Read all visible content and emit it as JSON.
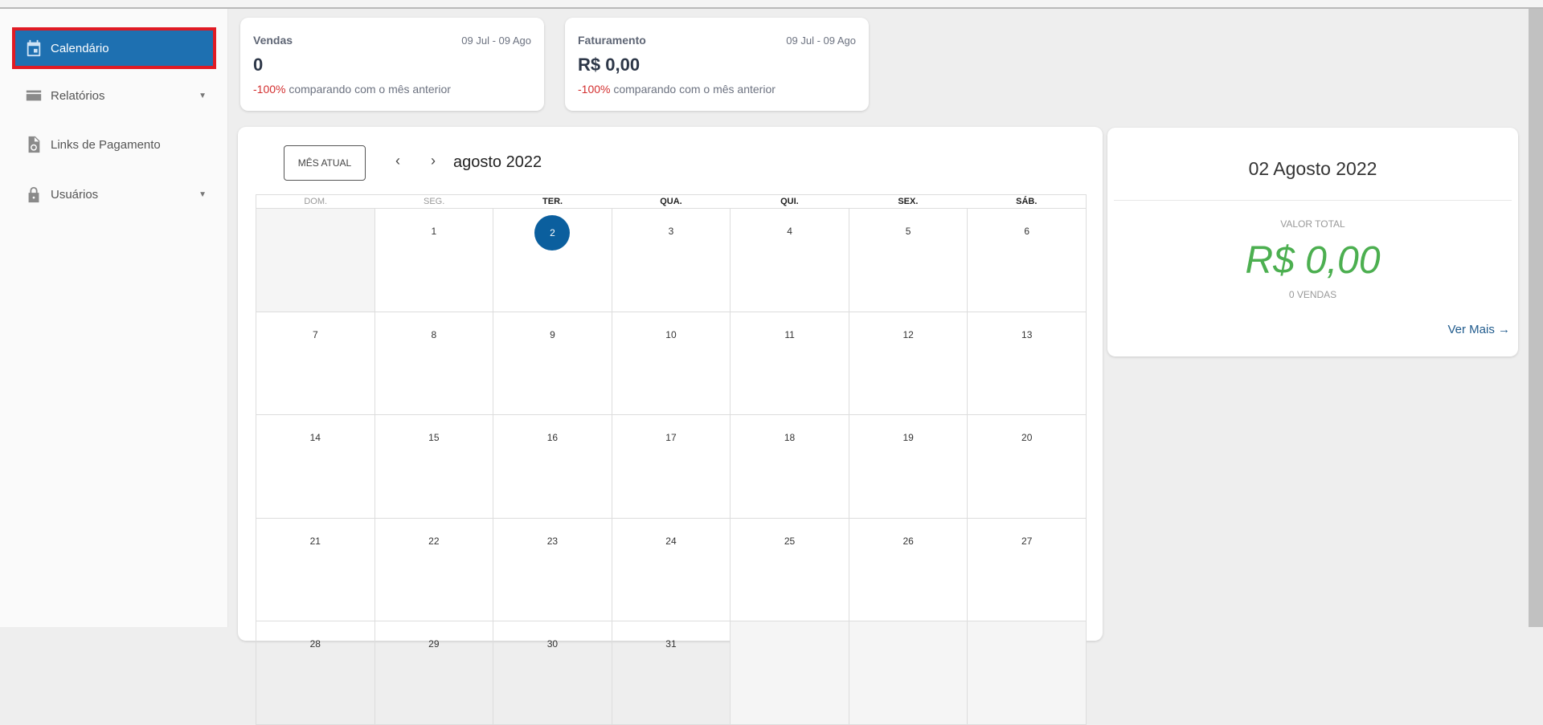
{
  "sidebar": {
    "items": [
      {
        "label": "Calendário",
        "icon": "calendar-icon",
        "active": true
      },
      {
        "label": "Relatórios",
        "icon": "credit-card-icon",
        "has_submenu": true
      },
      {
        "label": "Links de Pagamento",
        "icon": "file-link-icon"
      },
      {
        "label": "Usuários",
        "icon": "lock-icon",
        "has_submenu": true
      }
    ]
  },
  "stats": [
    {
      "title": "Vendas",
      "range": "09 Jul - 09 Ago",
      "value": "0",
      "change": "-100%",
      "change_text": " comparando com o mês anterior"
    },
    {
      "title": "Faturamento",
      "range": "09 Jul - 09 Ago",
      "value": "R$ 0,00",
      "change": "-100%",
      "change_text": " comparando com o mês anterior"
    }
  ],
  "calendar": {
    "current_month_button": "MÊS ATUAL",
    "prev": "‹",
    "next": "›",
    "title": "agosto 2022",
    "weekdays": [
      "DOM.",
      "SEG.",
      "TER.",
      "QUA.",
      "QUI.",
      "SEX.",
      "SÁB."
    ],
    "selected_day": "2",
    "weeks": [
      [
        "",
        "1",
        "2",
        "3",
        "4",
        "5",
        "6"
      ],
      [
        "7",
        "8",
        "9",
        "10",
        "11",
        "12",
        "13"
      ],
      [
        "14",
        "15",
        "16",
        "17",
        "18",
        "19",
        "20"
      ],
      [
        "21",
        "22",
        "23",
        "24",
        "25",
        "26",
        "27"
      ],
      [
        "28",
        "29",
        "30",
        "31",
        "",
        "",
        ""
      ]
    ]
  },
  "detail": {
    "date": "02 Agosto 2022",
    "total_label": "VALOR TOTAL",
    "total_value": "R$ 0,00",
    "sales": "0 VENDAS",
    "more": "Ver Mais →"
  },
  "colors": {
    "accent": "#1e70b1",
    "highlight_border": "#e01b24",
    "negative": "#d32f2f",
    "positive": "#4caf50",
    "today": "#0b5f9e"
  }
}
